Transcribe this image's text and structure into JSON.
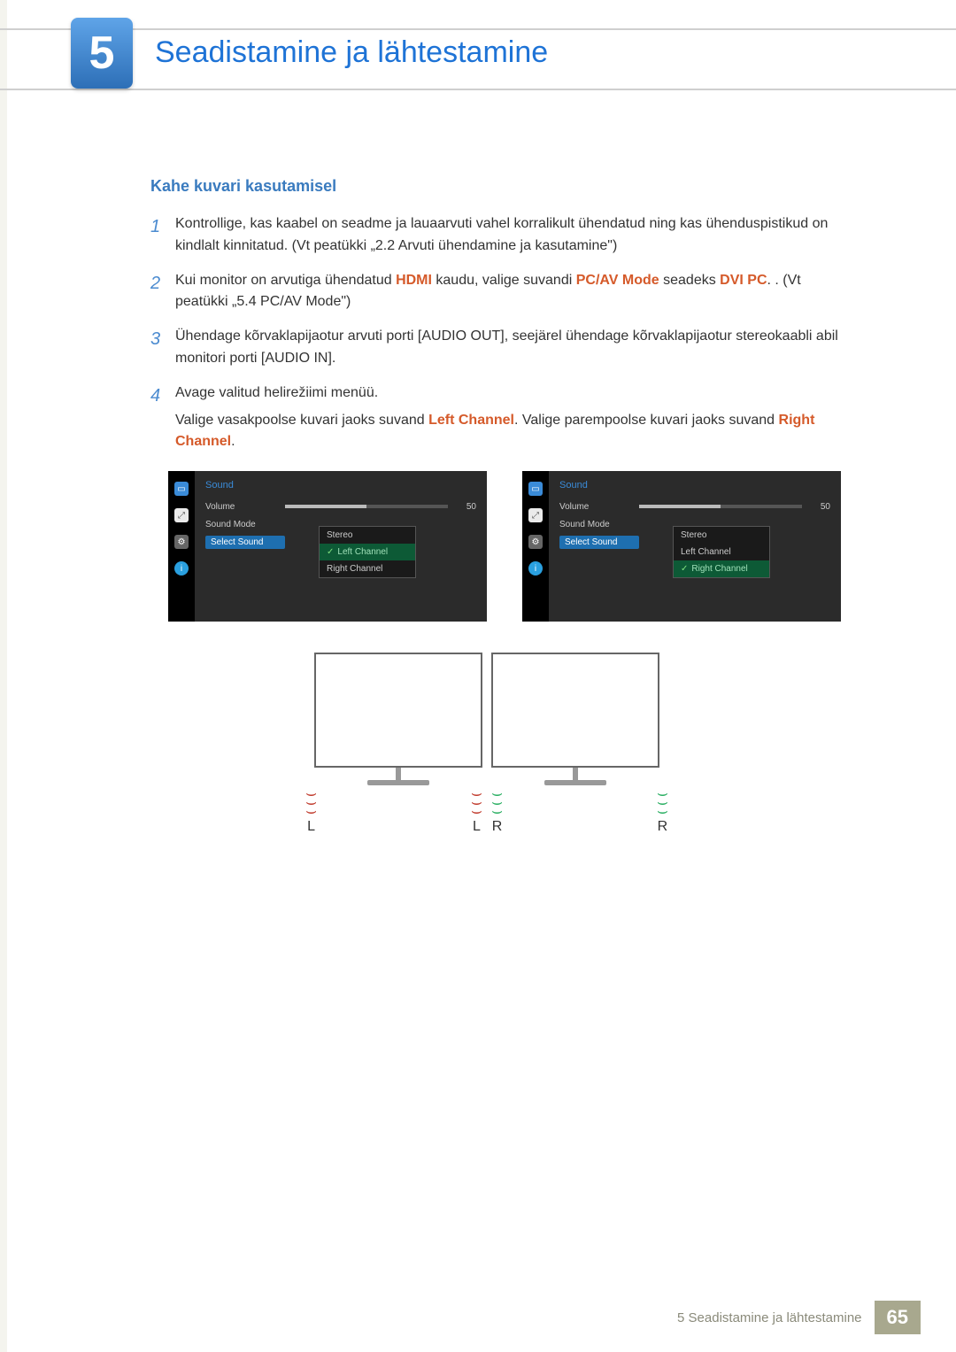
{
  "chapter": {
    "number": "5",
    "title": "Seadistamine ja lähtestamine"
  },
  "section": {
    "title": "Kahe kuvari kasutamisel"
  },
  "steps": [
    {
      "n": "1",
      "parts": [
        {
          "t": "Kontrollige, kas kaabel on seadme ja lauaarvuti vahel korralikult ühendatud ning kas ühenduspistikud on kindlalt kinnitatud. (Vt peatükki „2.2 Arvuti ühendamine ja kasutamine\")"
        }
      ]
    },
    {
      "n": "2",
      "parts": [
        {
          "t": "Kui monitor on arvutiga ühendatud "
        },
        {
          "t": "HDMI",
          "hl": true
        },
        {
          "t": " kaudu, valige suvandi "
        },
        {
          "t": "PC/AV Mode",
          "hl": true
        },
        {
          "t": " seadeks "
        },
        {
          "t": "DVI PC",
          "hl": true
        },
        {
          "t": ". . (Vt peatükki „5.4 PC/AV Mode\")"
        }
      ]
    },
    {
      "n": "3",
      "parts": [
        {
          "t": "Ühendage kõrvaklapijaotur arvuti porti [AUDIO OUT], seejärel ühendage kõrvaklapijaotur stereokaabli abil monitori porti [AUDIO IN]."
        }
      ]
    },
    {
      "n": "4",
      "parts": [
        {
          "t": "Avage valitud helirežiimi menüü."
        }
      ],
      "sub": [
        {
          "t": "Valige vasakpoolse kuvari jaoks suvand "
        },
        {
          "t": "Left Channel",
          "hl": true
        },
        {
          "t": ". Valige parempoolse kuvari jaoks suvand "
        },
        {
          "t": "Right Channel",
          "hl": true
        },
        {
          "t": "."
        }
      ]
    }
  ],
  "osd": {
    "title": "Sound",
    "volume_label": "Volume",
    "volume_value": "50",
    "volume_fill_pct": 50,
    "mode_label": "Sound Mode",
    "select_label": "Select Sound",
    "options": [
      "Stereo",
      "Left Channel",
      "Right Channel"
    ],
    "left_selected_index": 1,
    "right_selected_index": 2,
    "colors": {
      "panel_bg": "#2b2b2b",
      "iconbar_bg": "#000000",
      "title_color": "#3a8bd8",
      "select_bg": "#1e6fb0",
      "option_sel_bg": "#0d5a36"
    }
  },
  "speakers": {
    "left_pair": [
      "L",
      "L"
    ],
    "right_pair": [
      "R",
      "R"
    ],
    "left_color": "#c0392b",
    "right_color": "#27ae60"
  },
  "footer": {
    "text": "5 Seadistamine ja lähtestamine",
    "page": "65",
    "page_bg": "#a8a88e"
  }
}
